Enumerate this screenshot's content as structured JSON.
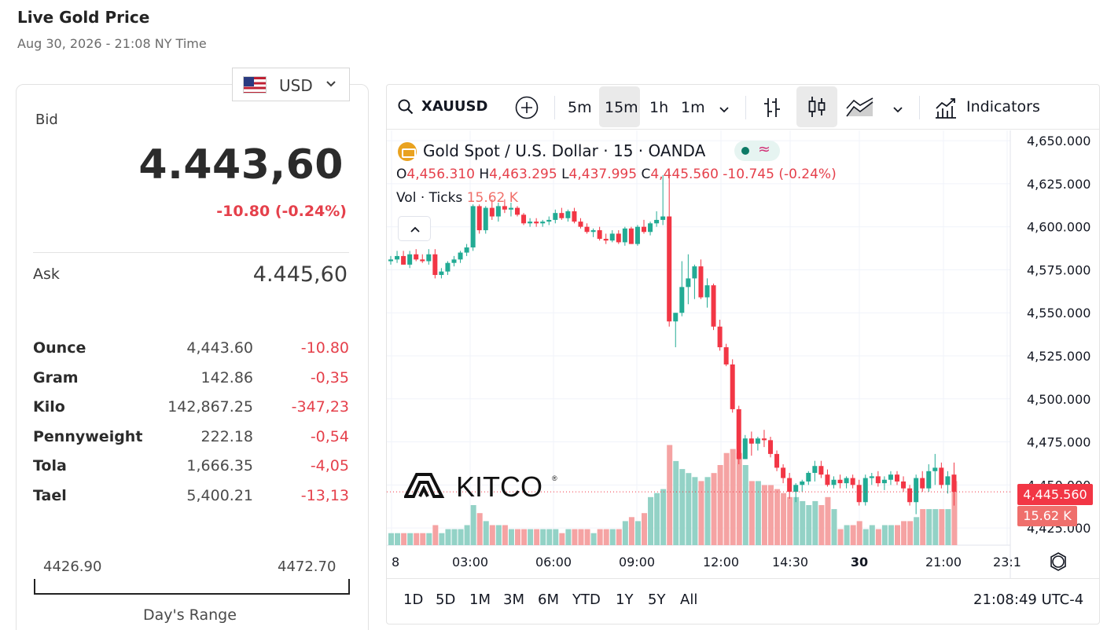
{
  "header": {
    "title": "Live Gold Price",
    "subtitle": "Aug 30, 2026 - 21:08 NY Time"
  },
  "currency": {
    "selected": "USD"
  },
  "quote": {
    "bid_label": "Bid",
    "bid": "4.443,60",
    "change": "-10.80 (-0.24%)",
    "ask_label": "Ask",
    "ask": "4.445,60"
  },
  "units": [
    {
      "name": "Ounce",
      "price": "4,443.60",
      "change": "-10.80"
    },
    {
      "name": "Gram",
      "price": "142.86",
      "change": "-0,35"
    },
    {
      "name": "Kilo",
      "price": "142,867.25",
      "change": "-347,23"
    },
    {
      "name": "Pennyweight",
      "price": "222.18",
      "change": "-0,54"
    },
    {
      "name": "Tola",
      "price": "1,666.35",
      "change": "-4,05"
    },
    {
      "name": "Tael",
      "price": "5,400.21",
      "change": "-13,13"
    }
  ],
  "day_range": {
    "low": "4426.90",
    "high": "4472.70",
    "label": "Day's Range",
    "position": 0.37
  },
  "toolbar": {
    "symbol": "XAUUSD",
    "intervals": [
      "5m",
      "15m",
      "1h",
      "1m"
    ],
    "active_interval": "15m",
    "indicators_label": "Indicators"
  },
  "legend": {
    "title": "Gold Spot / U.S. Dollar · 15 · OANDA",
    "o_label": "O",
    "o": "4,456.310",
    "h_label": "H",
    "h": "4,463.295",
    "l_label": "L",
    "l": "4,437.995",
    "c_label": "C",
    "c": "4,445.560",
    "chg": "-10.745 (-0.24%)",
    "vol_label": "Vol · Ticks",
    "vol": "15.62 K"
  },
  "logo_text": "KITCO",
  "price_tag": "4,445.560",
  "vol_tag": "15.62 K",
  "time_ranges": [
    "1D",
    "5D",
    "1M",
    "3M",
    "6M",
    "YTD",
    "1Y",
    "5Y",
    "All"
  ],
  "clock": "21:08:49 UTC-4",
  "colors": {
    "up": "#22ab94",
    "down": "#f23645",
    "up_vol": "#93d2c6",
    "down_vol": "#f5a3a3",
    "accent_red": "#e5404b"
  },
  "chart_data": {
    "type": "candlestick",
    "y_ticks": [
      "4,650.000",
      "4,625.000",
      "4,600.000",
      "4,575.000",
      "4,550.000",
      "4,525.000",
      "4,500.000",
      "4,475.000",
      "4,450.000",
      "4,425.000"
    ],
    "y_tick_values": [
      4650,
      4625,
      4600,
      4575,
      4550,
      4525,
      4500,
      4475,
      4450,
      4425
    ],
    "ylim": [
      4415,
      4656
    ],
    "x_ticks": [
      "8",
      "03:00",
      "06:00",
      "09:00",
      "12:00",
      "14:30",
      "30",
      "21:00",
      "23:1"
    ],
    "grid": true,
    "candles": [
      [
        4580,
        4583,
        4578,
        4581,
        3
      ],
      [
        4581,
        4586,
        4579,
        4583,
        3
      ],
      [
        4583,
        4586,
        4578,
        4578,
        3
      ],
      [
        4578,
        4586,
        4576,
        4584,
        3
      ],
      [
        4584,
        4587,
        4580,
        4581,
        3
      ],
      [
        4581,
        4584,
        4579,
        4580,
        3
      ],
      [
        4580,
        4587,
        4578,
        4584,
        3
      ],
      [
        4584,
        4587,
        4570,
        4572,
        5
      ],
      [
        4572,
        4576,
        4570,
        4574,
        3
      ],
      [
        4574,
        4580,
        4572,
        4579,
        4
      ],
      [
        4579,
        4583,
        4577,
        4581,
        4
      ],
      [
        4581,
        4586,
        4579,
        4585,
        4
      ],
      [
        4585,
        4590,
        4583,
        4588,
        5
      ],
      [
        4588,
        4613,
        4586,
        4612,
        10
      ],
      [
        4612,
        4613,
        4596,
        4598,
        8
      ],
      [
        4598,
        4612,
        4596,
        4611,
        6
      ],
      [
        4611,
        4616,
        4604,
        4606,
        5
      ],
      [
        4606,
        4614,
        4603,
        4612,
        5
      ],
      [
        4612,
        4616,
        4608,
        4610,
        5
      ],
      [
        4610,
        4614,
        4606,
        4611,
        4
      ],
      [
        4611,
        4612,
        4606,
        4607,
        4
      ],
      [
        4607,
        4608,
        4601,
        4602,
        4
      ],
      [
        4602,
        4605,
        4600,
        4603,
        4
      ],
      [
        4603,
        4605,
        4600,
        4602,
        4
      ],
      [
        4602,
        4604,
        4600,
        4603,
        4
      ],
      [
        4603,
        4606,
        4601,
        4604,
        4
      ],
      [
        4604,
        4610,
        4602,
        4608,
        4
      ],
      [
        4608,
        4611,
        4604,
        4605,
        3
      ],
      [
        4605,
        4610,
        4603,
        4609,
        4
      ],
      [
        4609,
        4611,
        4602,
        4603,
        4
      ],
      [
        4603,
        4605,
        4599,
        4600,
        4
      ],
      [
        4600,
        4602,
        4596,
        4597,
        4
      ],
      [
        4597,
        4599,
        4594,
        4598,
        3
      ],
      [
        4598,
        4600,
        4592,
        4593,
        4
      ],
      [
        4593,
        4596,
        4590,
        4592,
        4
      ],
      [
        4592,
        4598,
        4591,
        4596,
        4
      ],
      [
        4596,
        4598,
        4590,
        4591,
        4
      ],
      [
        4591,
        4600,
        4589,
        4599,
        6
      ],
      [
        4599,
        4600,
        4590,
        4590,
        7
      ],
      [
        4590,
        4601,
        4589,
        4600,
        6
      ],
      [
        4600,
        4604,
        4596,
        4597,
        8
      ],
      [
        4597,
        4603,
        4595,
        4602,
        12
      ],
      [
        4602,
        4609,
        4600,
        4604,
        13
      ],
      [
        4604,
        4630,
        4601,
        4606,
        14
      ],
      [
        4606,
        4632,
        4542,
        4545,
        25
      ],
      [
        4545,
        4550,
        4530,
        4550,
        21
      ],
      [
        4550,
        4580,
        4548,
        4565,
        19
      ],
      [
        4565,
        4584,
        4555,
        4570,
        18
      ],
      [
        4570,
        4578,
        4558,
        4577,
        17
      ],
      [
        4577,
        4581,
        4558,
        4559,
        16
      ],
      [
        4559,
        4570,
        4553,
        4566,
        17
      ],
      [
        4566,
        4567,
        4540,
        4542,
        18
      ],
      [
        4542,
        4546,
        4528,
        4530,
        20
      ],
      [
        4530,
        4532,
        4519,
        4520,
        23
      ],
      [
        4520,
        4523,
        4492,
        4494,
        24
      ],
      [
        4494,
        4496,
        4462,
        4465,
        23
      ],
      [
        4465,
        4479,
        4465,
        4477,
        20
      ],
      [
        4477,
        4481,
        4467,
        4474,
        16
      ],
      [
        4474,
        4478,
        4470,
        4477,
        16
      ],
      [
        4477,
        4482,
        4472,
        4476,
        15
      ],
      [
        4476,
        4478,
        4466,
        4468,
        15
      ],
      [
        4468,
        4470,
        4458,
        4460,
        14
      ],
      [
        4460,
        4462,
        4451,
        4454,
        13
      ],
      [
        4454,
        4457,
        4442,
        4446,
        12
      ],
      [
        4446,
        4451,
        4440,
        4450,
        12
      ],
      [
        4450,
        4453,
        4446,
        4452,
        11
      ],
      [
        4452,
        4458,
        4450,
        4457,
        10
      ],
      [
        4457,
        4464,
        4452,
        4461,
        11
      ],
      [
        4461,
        4464,
        4454,
        4456,
        10
      ],
      [
        4456,
        4459,
        4449,
        4450,
        12
      ],
      [
        4450,
        4455,
        4448,
        4453,
        9
      ],
      [
        4453,
        4456,
        4448,
        4451,
        4
      ],
      [
        4451,
        4455,
        4448,
        4454,
        5
      ],
      [
        4454,
        4456,
        4448,
        4450,
        5
      ],
      [
        4450,
        4453,
        4438,
        4440,
        6
      ],
      [
        4440,
        4456,
        4438,
        4454,
        4
      ],
      [
        4454,
        4457,
        4450,
        4455,
        5
      ],
      [
        4455,
        4458,
        4449,
        4451,
        4
      ],
      [
        4451,
        4455,
        4447,
        4453,
        5
      ],
      [
        4453,
        4458,
        4450,
        4456,
        5
      ],
      [
        4456,
        4458,
        4450,
        4452,
        5
      ],
      [
        4452,
        4455,
        4446,
        4448,
        6
      ],
      [
        4448,
        4450,
        4438,
        4440,
        6
      ],
      [
        4440,
        4456,
        4433,
        4454,
        7
      ],
      [
        4454,
        4458,
        4446,
        4448,
        9
      ],
      [
        4448,
        4462,
        4446,
        4458,
        9
      ],
      [
        4458,
        4468,
        4450,
        4460,
        9
      ],
      [
        4460,
        4463,
        4448,
        4450,
        9
      ],
      [
        4450,
        4458,
        4445,
        4455,
        9
      ],
      [
        4456,
        4463,
        4438,
        4446,
        16
      ]
    ],
    "volume_unit": "K"
  }
}
